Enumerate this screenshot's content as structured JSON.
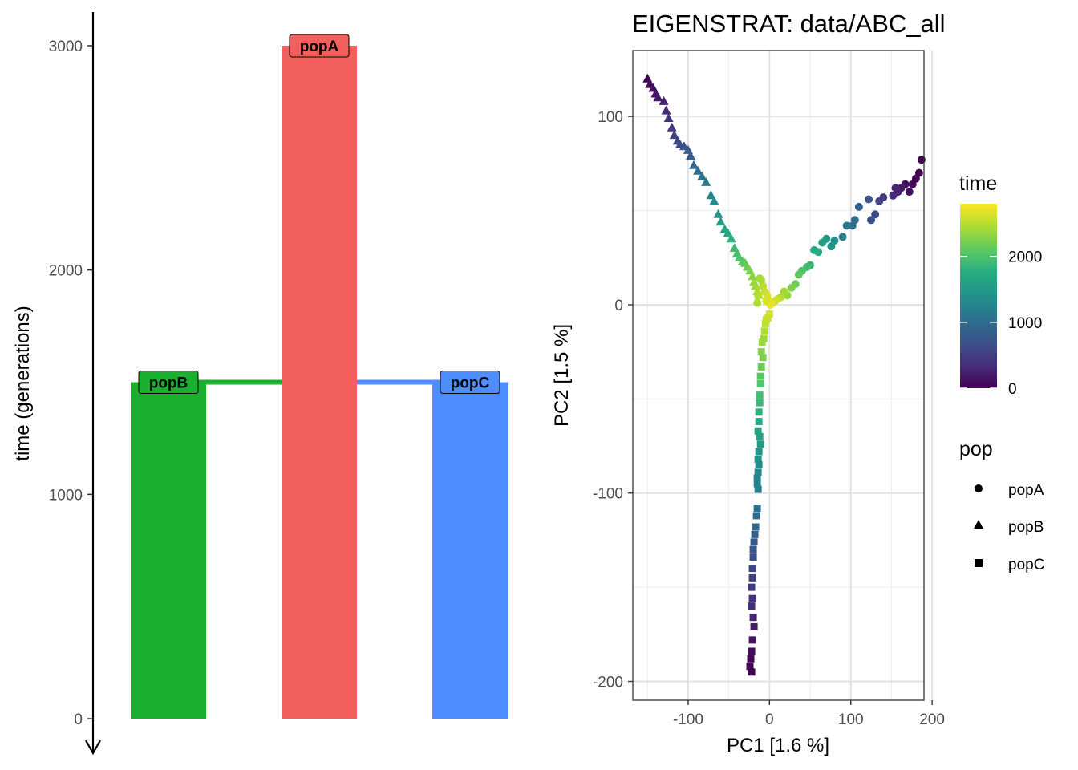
{
  "chart_data": [
    {
      "type": "bar",
      "ylabel": "time (generations)",
      "ylim": [
        0,
        3000
      ],
      "yticks": [
        0,
        1000,
        2000,
        3000
      ],
      "y_axis_direction": "time runs downward (arrow points down)",
      "categories": [
        "popB",
        "popA",
        "popC"
      ],
      "values": [
        1500,
        3000,
        1500
      ],
      "colors": [
        "#1aaf2e",
        "#f25f5c",
        "#4d8dff"
      ],
      "labels": [
        "popB",
        "popA",
        "popC"
      ],
      "splits": [
        {
          "from": "popA",
          "to": "popB",
          "time": 1500,
          "color": "#1aaf2e"
        },
        {
          "from": "popA",
          "to": "popC",
          "time": 1500,
          "color": "#4d8dff"
        }
      ]
    },
    {
      "type": "scatter",
      "title": "EIGENSTRAT: data/ABC_all",
      "xlabel": "PC1 [1.6 %]",
      "ylabel": "PC2 [1.5 %]",
      "xlim": [
        -168,
        190
      ],
      "ylim": [
        -210,
        135
      ],
      "xticks": [
        -100,
        0,
        100,
        200
      ],
      "yticks": [
        -200,
        -100,
        0,
        100
      ],
      "grid": true,
      "color_legend": {
        "title": "time",
        "min": 0,
        "max": 2800,
        "ticks": [
          0,
          1000,
          2000
        ],
        "palette": "viridis"
      },
      "shape_legend": {
        "title": "pop",
        "items": [
          {
            "label": "popA",
            "shape": "circle"
          },
          {
            "label": "popB",
            "shape": "triangle"
          },
          {
            "label": "popC",
            "shape": "square"
          }
        ]
      },
      "series": [
        {
          "name": "popA",
          "shape": "circle",
          "points": [
            [
              187,
              77
            ],
            [
              184,
              70
            ],
            [
              180,
              67
            ],
            [
              176,
              64
            ],
            [
              172,
              60
            ],
            [
              167,
              64
            ],
            [
              162,
              62
            ],
            [
              158,
              60
            ],
            [
              155,
              62
            ],
            [
              152,
              58
            ],
            [
              140,
              57
            ],
            [
              135,
              55
            ],
            [
              130,
              48
            ],
            [
              125,
              45
            ],
            [
              122,
              56
            ],
            [
              110,
              52
            ],
            [
              105,
              45
            ],
            [
              102,
              42
            ],
            [
              95,
              42
            ],
            [
              90,
              36
            ],
            [
              80,
              34
            ],
            [
              76,
              31
            ],
            [
              70,
              35
            ],
            [
              65,
              33
            ],
            [
              60,
              28
            ],
            [
              55,
              29
            ],
            [
              50,
              21
            ],
            [
              46,
              20
            ],
            [
              40,
              18
            ],
            [
              36,
              16
            ],
            [
              32,
              11
            ],
            [
              27,
              9
            ],
            [
              22,
              5
            ],
            [
              18,
              7
            ],
            [
              14,
              4
            ],
            [
              10,
              3
            ],
            [
              7,
              2
            ],
            [
              4,
              1
            ],
            [
              1,
              0
            ],
            [
              -2,
              3
            ],
            [
              -4,
              2
            ],
            [
              -6,
              7
            ],
            [
              -8,
              10
            ],
            [
              -10,
              13
            ],
            [
              -12,
              14
            ],
            [
              -14,
              5
            ],
            [
              -15,
              1
            ],
            [
              -3,
              5
            ]
          ]
        },
        {
          "name": "popB",
          "shape": "triangle",
          "points": [
            [
              -150,
              120
            ],
            [
              -147,
              117
            ],
            [
              -143,
              115
            ],
            [
              -140,
              112
            ],
            [
              -137,
              110
            ],
            [
              -130,
              108
            ],
            [
              -127,
              103
            ],
            [
              -124,
              99
            ],
            [
              -120,
              94
            ],
            [
              -117,
              90
            ],
            [
              -113,
              87
            ],
            [
              -110,
              85
            ],
            [
              -105,
              84
            ],
            [
              -100,
              82
            ],
            [
              -97,
              79
            ],
            [
              -93,
              74
            ],
            [
              -88,
              71
            ],
            [
              -83,
              68
            ],
            [
              -78,
              65
            ],
            [
              -72,
              58
            ],
            [
              -68,
              55
            ],
            [
              -63,
              48
            ],
            [
              -60,
              44
            ],
            [
              -55,
              40
            ],
            [
              -51,
              38
            ],
            [
              -47,
              35
            ],
            [
              -43,
              30
            ],
            [
              -40,
              27
            ],
            [
              -37,
              25
            ],
            [
              -33,
              23
            ],
            [
              -30,
              22
            ],
            [
              -27,
              20
            ],
            [
              -24,
              18
            ],
            [
              -21,
              15
            ],
            [
              -19,
              12
            ],
            [
              -17,
              10
            ],
            [
              -15,
              7
            ],
            [
              -13,
              5
            ]
          ]
        },
        {
          "name": "popC",
          "shape": "square",
          "points": [
            [
              0,
              -5
            ],
            [
              -2,
              -7
            ],
            [
              -4,
              -8
            ],
            [
              -5,
              -10
            ],
            [
              -6,
              -14
            ],
            [
              -7,
              -18
            ],
            [
              -9,
              -20
            ],
            [
              -10,
              -25
            ],
            [
              -8,
              -28
            ],
            [
              -10,
              -33
            ],
            [
              -11,
              -38
            ],
            [
              -11,
              -42
            ],
            [
              -12,
              -48
            ],
            [
              -12,
              -52
            ],
            [
              -13,
              -57
            ],
            [
              -13,
              -62
            ],
            [
              -14,
              -67
            ],
            [
              -12,
              -70
            ],
            [
              -11,
              -74
            ],
            [
              -13,
              -78
            ],
            [
              -14,
              -82
            ],
            [
              -13,
              -85
            ],
            [
              -14,
              -89
            ],
            [
              -15,
              -92
            ],
            [
              -15,
              -95
            ],
            [
              -14,
              -98
            ],
            [
              -15,
              -108
            ],
            [
              -16,
              -112
            ],
            [
              -17,
              -118
            ],
            [
              -18,
              -122
            ],
            [
              -19,
              -126
            ],
            [
              -20,
              -130
            ],
            [
              -20,
              -134
            ],
            [
              -21,
              -140
            ],
            [
              -21,
              -145
            ],
            [
              -22,
              -150
            ],
            [
              -21,
              -156
            ],
            [
              -22,
              -160
            ],
            [
              -20,
              -166
            ],
            [
              -19,
              -171
            ],
            [
              -21,
              -178
            ],
            [
              -22,
              -184
            ],
            [
              -23,
              -188
            ],
            [
              -24,
              -192
            ],
            [
              -22,
              -195
            ]
          ]
        }
      ]
    }
  ]
}
